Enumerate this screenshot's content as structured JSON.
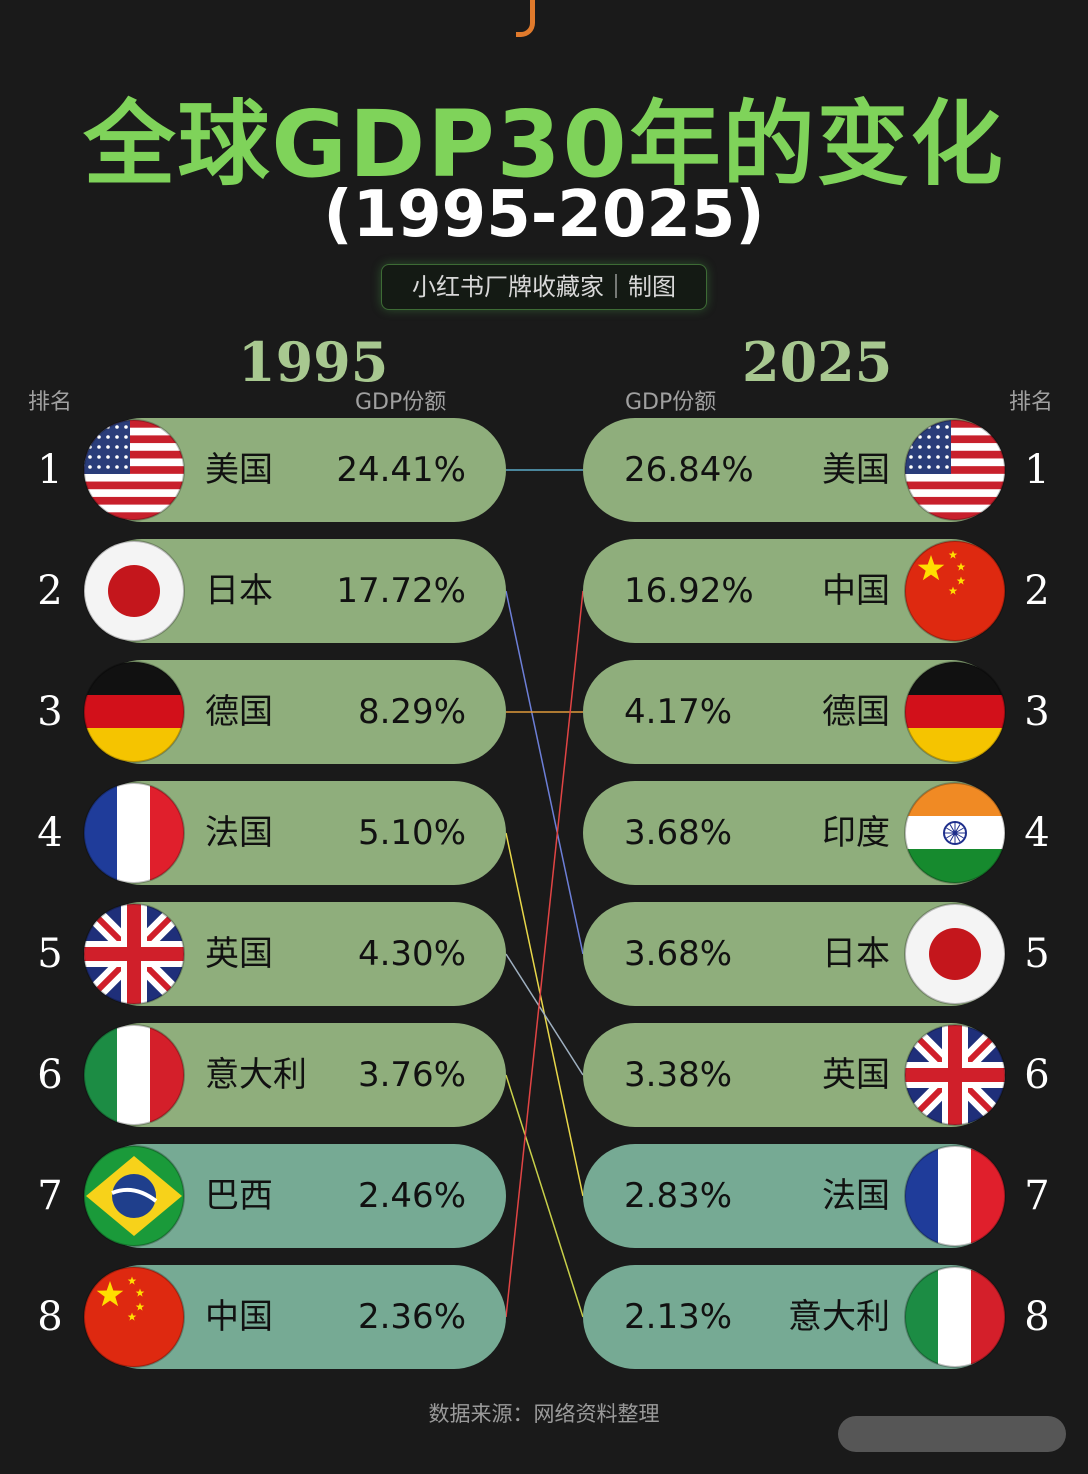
{
  "title": "全球GDP30年的变化",
  "subtitle": "(1995-2025)",
  "credit": "小红书厂牌收藏家｜制图",
  "left_year": "1995",
  "right_year": "2025",
  "rank_header": "排名",
  "share_header": "GDP份额",
  "source": "数据来源：网络资料整理",
  "colors": {
    "title": "#7fd35a",
    "pill_green": "#8fae7c",
    "pill_teal": "#76aa94",
    "background": "#1a1a1a"
  },
  "chart_data": {
    "type": "table",
    "left": {
      "year": "1995",
      "rows": [
        {
          "rank": "1",
          "country": "美国",
          "share": "24.41%",
          "value": 24.41,
          "flag": "usa-flag-icon"
        },
        {
          "rank": "2",
          "country": "日本",
          "share": "17.72%",
          "value": 17.72,
          "flag": "japan-flag-icon"
        },
        {
          "rank": "3",
          "country": "德国",
          "share": "8.29%",
          "value": 8.29,
          "flag": "germany-flag-icon"
        },
        {
          "rank": "4",
          "country": "法国",
          "share": "5.10%",
          "value": 5.1,
          "flag": "france-flag-icon"
        },
        {
          "rank": "5",
          "country": "英国",
          "share": "4.30%",
          "value": 4.3,
          "flag": "uk-flag-icon"
        },
        {
          "rank": "6",
          "country": "意大利",
          "share": "3.76%",
          "value": 3.76,
          "flag": "italy-flag-icon"
        },
        {
          "rank": "7",
          "country": "巴西",
          "share": "2.46%",
          "value": 2.46,
          "flag": "brazil-flag-icon"
        },
        {
          "rank": "8",
          "country": "中国",
          "share": "2.36%",
          "value": 2.36,
          "flag": "china-flag-icon"
        }
      ]
    },
    "right": {
      "year": "2025",
      "rows": [
        {
          "rank": "1",
          "country": "美国",
          "share": "26.84%",
          "value": 26.84,
          "flag": "usa-flag-icon"
        },
        {
          "rank": "2",
          "country": "中国",
          "share": "16.92%",
          "value": 16.92,
          "flag": "china-flag-icon"
        },
        {
          "rank": "3",
          "country": "德国",
          "share": "4.17%",
          "value": 4.17,
          "flag": "germany-flag-icon"
        },
        {
          "rank": "4",
          "country": "印度",
          "share": "3.68%",
          "value": 3.68,
          "flag": "india-flag-icon"
        },
        {
          "rank": "5",
          "country": "日本",
          "share": "3.68%",
          "value": 3.68,
          "flag": "japan-flag-icon"
        },
        {
          "rank": "6",
          "country": "英国",
          "share": "3.38%",
          "value": 3.38,
          "flag": "uk-flag-icon"
        },
        {
          "rank": "7",
          "country": "法国",
          "share": "2.83%",
          "value": 2.83,
          "flag": "france-flag-icon"
        },
        {
          "rank": "8",
          "country": "意大利",
          "share": "2.13%",
          "value": 2.13,
          "flag": "italy-flag-icon"
        }
      ]
    },
    "links": [
      {
        "from_rank": "1",
        "to_rank": "1",
        "color": "#5aa9c8"
      },
      {
        "from_rank": "2",
        "to_rank": "5",
        "color": "#6d7fd8"
      },
      {
        "from_rank": "3",
        "to_rank": "3",
        "color": "#e09a3a"
      },
      {
        "from_rank": "4",
        "to_rank": "7",
        "color": "#e8d84a"
      },
      {
        "from_rank": "5",
        "to_rank": "6",
        "color": "#9fb0c0"
      },
      {
        "from_rank": "6",
        "to_rank": "8",
        "color": "#c8d04a"
      },
      {
        "from_rank": "8",
        "to_rank": "2",
        "color": "#e04444"
      }
    ]
  }
}
